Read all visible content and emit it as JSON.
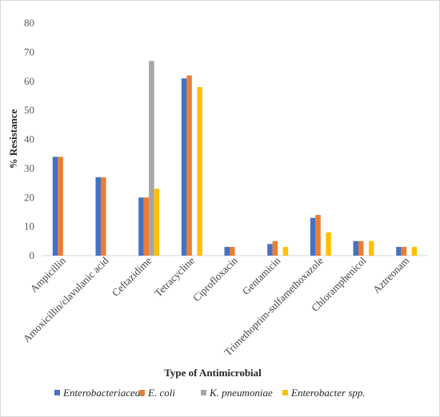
{
  "chart_data": {
    "type": "bar",
    "title": "",
    "xlabel": "Type of Antimicrobial",
    "ylabel": "% Resistance",
    "ylim": [
      0,
      80
    ],
    "yticks": [
      0,
      10,
      20,
      30,
      40,
      50,
      60,
      70,
      80
    ],
    "grid": false,
    "legend_position": "bottom",
    "categories": [
      "Ampicillin",
      "Amoxicillin/clavulanic acid",
      "Ceftazidime",
      "Tetracycline",
      "Ciprofloxacin",
      "Gentamicin",
      "Trimethoprim-sulfamethoxazole",
      "Chloramphenicol",
      "Aztreonam"
    ],
    "series": [
      {
        "name": "Enterobacteriaceae",
        "color": "#4472C4",
        "values": [
          34,
          27,
          20,
          61,
          3,
          4,
          13,
          5,
          3
        ]
      },
      {
        "name": "E. coli",
        "color": "#ED7D31",
        "values": [
          34,
          27,
          20,
          62,
          3,
          5,
          14,
          5,
          3
        ]
      },
      {
        "name": "K. pneumoniae",
        "color": "#A5A5A5",
        "values": [
          null,
          null,
          67,
          null,
          null,
          null,
          null,
          null,
          null
        ]
      },
      {
        "name": "Enterobacter spp.",
        "color": "#FFC000",
        "values": [
          null,
          null,
          23,
          58,
          null,
          3,
          8,
          5,
          3
        ]
      }
    ]
  }
}
